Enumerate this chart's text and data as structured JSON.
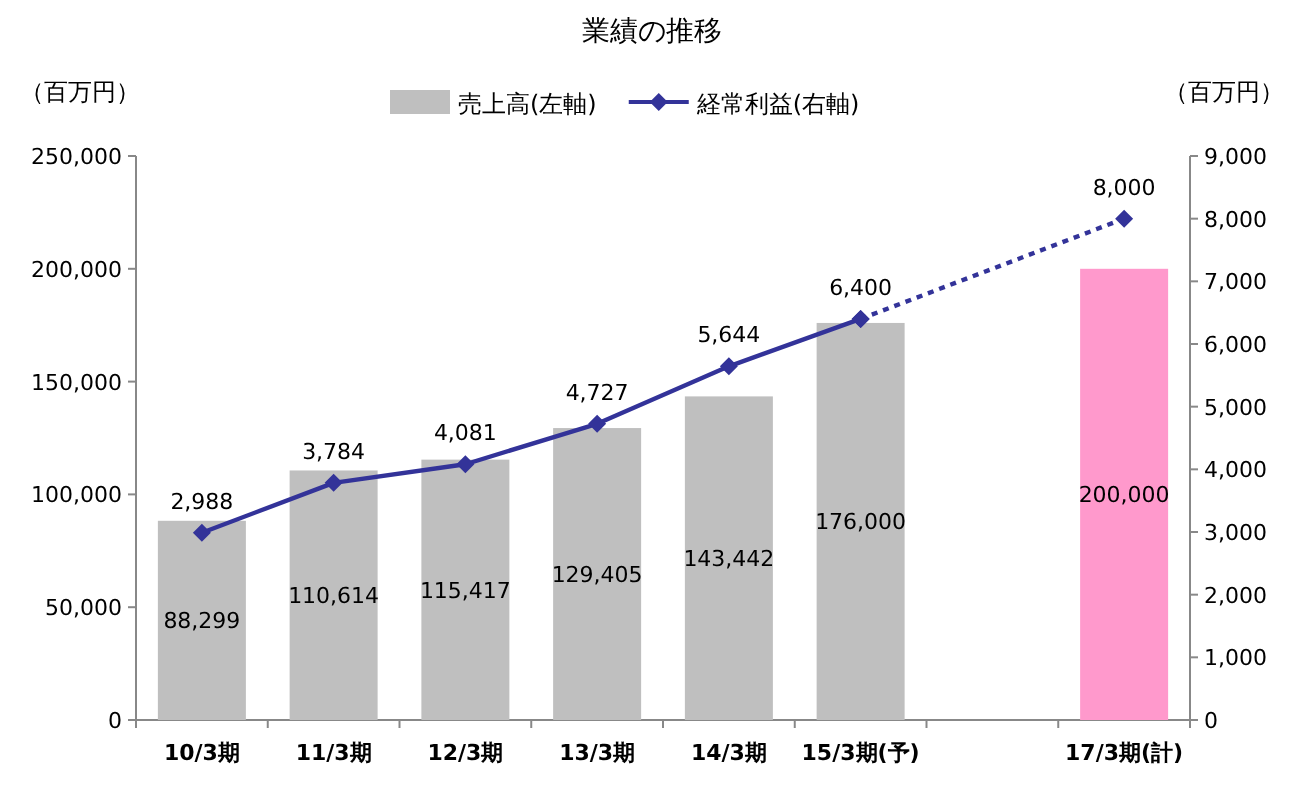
{
  "chart_data": {
    "type": "bar",
    "title": "業績の推移",
    "ylabel": "（百万円）",
    "y2label": "（百万円）",
    "categories": [
      "10/3期",
      "11/3期",
      "12/3期",
      "13/3期",
      "14/3期",
      "15/3期(予)",
      null,
      "17/3期(計)"
    ],
    "series": [
      {
        "name": "売上高(左軸)",
        "color": "#bfbfbf",
        "colors": [
          "#bfbfbf",
          "#bfbfbf",
          "#bfbfbf",
          "#bfbfbf",
          "#bfbfbf",
          "#bfbfbf",
          "#bfbfbf",
          "#ff99cc"
        ],
        "values": [
          88299,
          110614,
          115417,
          129405,
          143442,
          176000,
          null,
          200000
        ],
        "value_labels": [
          "88,299",
          "110,614",
          "115,417",
          "129,405",
          "143,442",
          "176,000",
          null,
          "200,000"
        ]
      },
      {
        "name": "経常利益(右軸)",
        "type": "line",
        "axis": "y2",
        "color": "#333399",
        "marker": "diamond",
        "line_style": "solid",
        "values": [
          2988,
          3784,
          4081,
          4727,
          5644,
          6400,
          null,
          null
        ],
        "value_labels": [
          "2,988",
          "3,784",
          "4,081",
          "4,727",
          "5,644",
          "6,400",
          null,
          null
        ]
      },
      {
        "type": "line",
        "axis": "y2",
        "color": "#333399",
        "marker": "diamond",
        "line_style": "dotted",
        "values": [
          null,
          null,
          null,
          null,
          null,
          6400,
          null,
          8000
        ],
        "value_labels": [
          null,
          null,
          null,
          null,
          null,
          null,
          null,
          "8,000"
        ]
      }
    ],
    "ylim": [
      0,
      250000
    ],
    "yticks": [
      {
        "value": 0,
        "label": "0"
      },
      {
        "value": 50000,
        "label": "50,000"
      },
      {
        "value": 100000,
        "label": "100,000"
      },
      {
        "value": 150000,
        "label": "150,000"
      },
      {
        "value": 200000,
        "label": "200,000"
      },
      {
        "value": 250000,
        "label": "250,000"
      }
    ],
    "y2lim": [
      0,
      9000
    ],
    "y2ticks": [
      {
        "value": 0,
        "label": "0"
      },
      {
        "value": 1000,
        "label": "1,000"
      },
      {
        "value": 2000,
        "label": "2,000"
      },
      {
        "value": 3000,
        "label": "3,000"
      },
      {
        "value": 4000,
        "label": "4,000"
      },
      {
        "value": 5000,
        "label": "5,000"
      },
      {
        "value": 6000,
        "label": "6,000"
      },
      {
        "value": 7000,
        "label": "7,000"
      },
      {
        "value": 8000,
        "label": "8,000"
      },
      {
        "value": 9000,
        "label": "9,000"
      }
    ],
    "legend": "top"
  }
}
